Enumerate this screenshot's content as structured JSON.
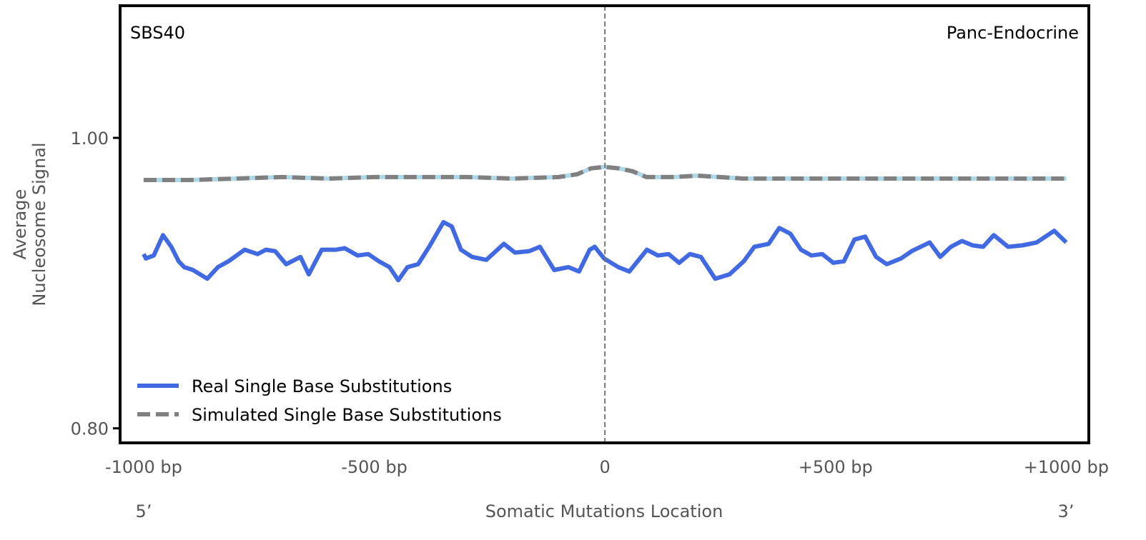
{
  "chart_data": {
    "type": "line",
    "title_left": "SBS40",
    "title_right": "Panc-Endocrine",
    "xlabel": "Somatic Mutations Location",
    "ylabel_line1": "Average",
    "ylabel_line2": "Nucleosome Signal",
    "x_end_left": "5’",
    "x_end_right": "3’",
    "xlim": [
      -1051,
      1049
    ],
    "ylim": [
      0.79,
      1.091
    ],
    "xticks": [
      {
        "value": -1000,
        "label": "-1000 bp"
      },
      {
        "value": -500,
        "label": "-500 bp"
      },
      {
        "value": 0,
        "label": "0"
      },
      {
        "value": 500,
        "label": "+500 bp"
      },
      {
        "value": 1000,
        "label": "+1000 bp"
      }
    ],
    "yticks": [
      {
        "value": 1.0,
        "label": "1.00"
      },
      {
        "value": 0.8,
        "label": "0.80"
      }
    ],
    "vline": 0,
    "legend_position": "lower-left",
    "series": [
      {
        "name": "Real Single Base Substitutions",
        "color": "#4169e1",
        "style": "solid",
        "x": [
          -1000,
          -995,
          -978,
          -958,
          -940,
          -924,
          -912,
          -893,
          -862,
          -839,
          -816,
          -781,
          -753,
          -735,
          -715,
          -691,
          -660,
          -642,
          -614,
          -583,
          -564,
          -536,
          -513,
          -490,
          -467,
          -448,
          -428,
          -405,
          -381,
          -350,
          -332,
          -312,
          -288,
          -257,
          -219,
          -195,
          -164,
          -141,
          -110,
          -79,
          -56,
          -33,
          -22,
          -2,
          29,
          53,
          91,
          115,
          138,
          161,
          184,
          208,
          239,
          270,
          301,
          324,
          355,
          378,
          402,
          425,
          448,
          471,
          495,
          518,
          541,
          564,
          588,
          611,
          642,
          665,
          704,
          727,
          750,
          774,
          797,
          820,
          843,
          874,
          905,
          936,
          974,
          1000
        ],
        "y": [
          0.92,
          0.917,
          0.919,
          0.933,
          0.925,
          0.915,
          0.911,
          0.909,
          0.903,
          0.911,
          0.915,
          0.923,
          0.92,
          0.923,
          0.922,
          0.913,
          0.918,
          0.906,
          0.923,
          0.923,
          0.924,
          0.919,
          0.92,
          0.915,
          0.911,
          0.902,
          0.911,
          0.913,
          0.925,
          0.942,
          0.939,
          0.923,
          0.918,
          0.916,
          0.927,
          0.921,
          0.922,
          0.925,
          0.909,
          0.911,
          0.908,
          0.923,
          0.925,
          0.917,
          0.911,
          0.908,
          0.923,
          0.919,
          0.92,
          0.914,
          0.92,
          0.918,
          0.903,
          0.906,
          0.915,
          0.925,
          0.927,
          0.938,
          0.934,
          0.923,
          0.919,
          0.92,
          0.914,
          0.915,
          0.93,
          0.932,
          0.918,
          0.913,
          0.917,
          0.922,
          0.928,
          0.918,
          0.925,
          0.929,
          0.926,
          0.925,
          0.933,
          0.925,
          0.926,
          0.928,
          0.936,
          0.928
        ]
      },
      {
        "name": "Simulated Single Base Substitutions",
        "color": "#808080",
        "underlay_color": "#add8e6",
        "style": "dashed",
        "x": [
          -1000,
          -950,
          -900,
          -800,
          -700,
          -600,
          -500,
          -400,
          -300,
          -200,
          -100,
          -60,
          -30,
          0,
          30,
          60,
          90,
          150,
          200,
          300,
          400,
          500,
          600,
          700,
          800,
          900,
          1000
        ],
        "y": [
          0.971,
          0.971,
          0.971,
          0.972,
          0.973,
          0.972,
          0.973,
          0.973,
          0.973,
          0.972,
          0.973,
          0.975,
          0.979,
          0.98,
          0.979,
          0.977,
          0.973,
          0.973,
          0.974,
          0.972,
          0.972,
          0.972,
          0.972,
          0.972,
          0.972,
          0.972,
          0.972
        ]
      }
    ]
  }
}
